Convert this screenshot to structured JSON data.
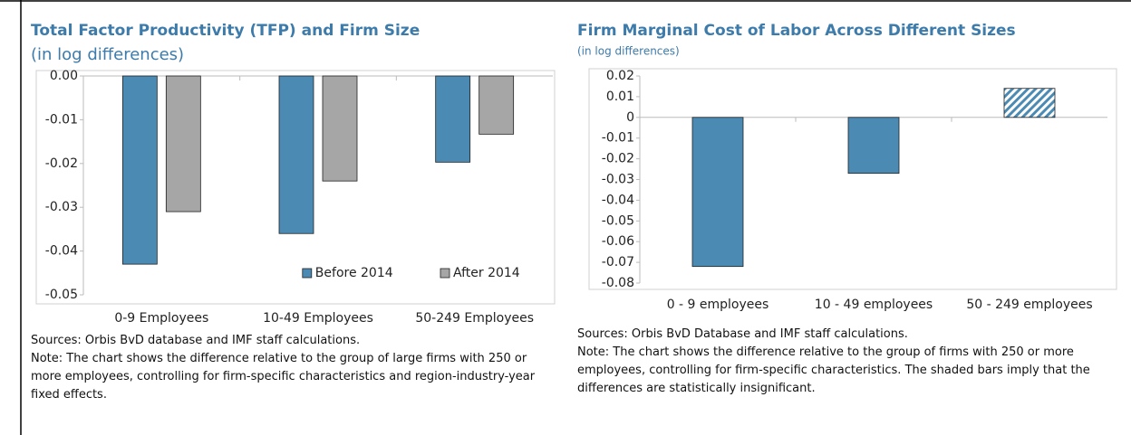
{
  "chart_data": [
    {
      "type": "bar",
      "title": "Total Factor Productivity (TFP) and Firm Size",
      "subtitle": "(in log differences)",
      "categories": [
        "0-9 Employees",
        "10-49 Employees",
        "50-249 Employees"
      ],
      "series": [
        {
          "name": "Before 2014",
          "color": "#4a8ab3",
          "values": [
            -0.043,
            -0.036,
            -0.0197
          ]
        },
        {
          "name": "After 2014",
          "color": "#a6a6a6",
          "values": [
            -0.031,
            -0.024,
            -0.0133
          ]
        }
      ],
      "ylim": [
        -0.05,
        0
      ],
      "yticks": [
        {
          "value": 0,
          "label": "0.00"
        },
        -0.01,
        -0.02,
        -0.03,
        -0.04,
        -0.05
      ],
      "legend": "lower right",
      "sources": "Sources: Orbis BvD database and IMF staff calculations.",
      "note": "Note: The chart shows the difference relative to the group of large firms with 250 or more employees, controlling for firm-specific characteristics and region-industry-year fixed effects."
    },
    {
      "type": "bar",
      "title": "Firm Marginal Cost of Labor Across Different Sizes",
      "subtitle": "(in log differences)",
      "categories": [
        "0 - 9 employees",
        "10 - 49 employees",
        "50 - 249 employees"
      ],
      "values": [
        -0.072,
        -0.027,
        0.014
      ],
      "color": "#4a8ab3",
      "hatched": [
        false,
        false,
        true
      ],
      "ylim": [
        -0.08,
        0.02
      ],
      "yticks": [
        0.02,
        0.01,
        0,
        -0.01,
        -0.02,
        -0.03,
        -0.04,
        -0.05,
        -0.06,
        -0.07,
        -0.08
      ],
      "sources": "Sources: Orbis BvD Database and IMF staff calculations.",
      "note": "Note: The chart shows the difference relative to the group of firms with 250 or more employees, controlling for firm-specific characteristics. The shaded bars imply that the differences are statistically insignificant."
    }
  ]
}
